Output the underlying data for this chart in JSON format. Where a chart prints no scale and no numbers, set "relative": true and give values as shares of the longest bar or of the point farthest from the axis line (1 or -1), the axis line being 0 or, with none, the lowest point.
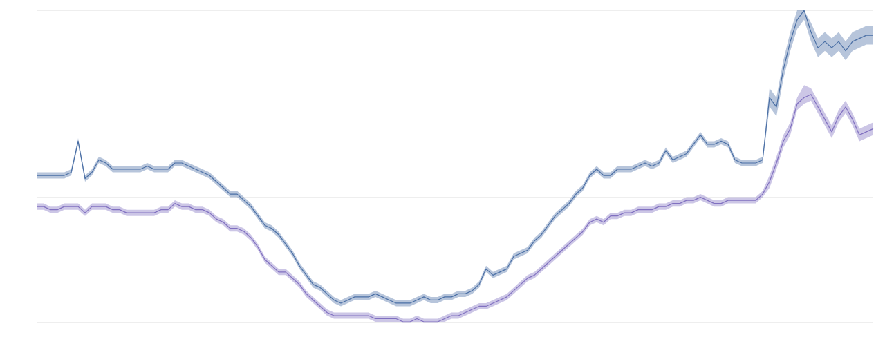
{
  "chart_data": {
    "type": "line",
    "relative": true,
    "grid": "y",
    "tick_labels": false,
    "categories": [
      null,
      null,
      null,
      null,
      null,
      null,
      null,
      null,
      null,
      null,
      null,
      null,
      null,
      null,
      null,
      null,
      null,
      null,
      null,
      null,
      null,
      null,
      null,
      null,
      null,
      null,
      null,
      null,
      null,
      null,
      null,
      null,
      null,
      null,
      null,
      null,
      null,
      null,
      null,
      null,
      null,
      null,
      null,
      null,
      null,
      null,
      null,
      null,
      null,
      null,
      null,
      null,
      null,
      null,
      null,
      null,
      null,
      null,
      null,
      null,
      null,
      null,
      null,
      null,
      null,
      null,
      null,
      null,
      null,
      null,
      null,
      null,
      null,
      null,
      null,
      null,
      null,
      null,
      null,
      null,
      null,
      null,
      null,
      null,
      null,
      null,
      null,
      null,
      null,
      null,
      null,
      null,
      null,
      null,
      null,
      null,
      null,
      null,
      null,
      null,
      null,
      null,
      null,
      null,
      null,
      null,
      null,
      null,
      null,
      null,
      null,
      null,
      null,
      null,
      null,
      null,
      null,
      null,
      null,
      null,
      null,
      null
    ],
    "series": [
      {
        "color": "#4a6fa5",
        "values": [
          0.47,
          0.47,
          0.47,
          0.47,
          0.47,
          0.48,
          0.58,
          0.46,
          0.48,
          0.52,
          0.51,
          0.49,
          0.49,
          0.49,
          0.49,
          0.49,
          0.5,
          0.49,
          0.49,
          0.49,
          0.51,
          0.51,
          0.5,
          0.49,
          0.48,
          0.47,
          0.45,
          0.43,
          0.41,
          0.41,
          0.39,
          0.37,
          0.34,
          0.31,
          0.3,
          0.28,
          0.25,
          0.22,
          0.18,
          0.15,
          0.12,
          0.11,
          0.09,
          0.07,
          0.06,
          0.07,
          0.08,
          0.08,
          0.08,
          0.09,
          0.08,
          0.07,
          0.06,
          0.06,
          0.06,
          0.07,
          0.08,
          0.07,
          0.07,
          0.08,
          0.08,
          0.09,
          0.09,
          0.1,
          0.12,
          0.17,
          0.15,
          0.16,
          0.17,
          0.21,
          0.22,
          0.23,
          0.26,
          0.28,
          0.31,
          0.34,
          0.36,
          0.38,
          0.41,
          0.43,
          0.47,
          0.49,
          0.47,
          0.47,
          0.49,
          0.49,
          0.49,
          0.5,
          0.51,
          0.5,
          0.51,
          0.55,
          0.52,
          0.53,
          0.54,
          0.57,
          0.6,
          0.57,
          0.57,
          0.58,
          0.57,
          0.52,
          0.51,
          0.51,
          0.51,
          0.52,
          0.72,
          0.69,
          0.81,
          0.9,
          0.97,
          1.0,
          0.93,
          0.88,
          0.9,
          0.88,
          0.9,
          0.87,
          0.9,
          0.91,
          0.92,
          0.92
        ],
        "lower": [
          0.46,
          0.46,
          0.46,
          0.46,
          0.46,
          0.47,
          0.57,
          0.45,
          0.47,
          0.51,
          0.5,
          0.48,
          0.48,
          0.48,
          0.48,
          0.48,
          0.49,
          0.48,
          0.48,
          0.48,
          0.5,
          0.5,
          0.49,
          0.48,
          0.47,
          0.46,
          0.44,
          0.42,
          0.4,
          0.4,
          0.38,
          0.36,
          0.33,
          0.3,
          0.29,
          0.27,
          0.24,
          0.21,
          0.17,
          0.14,
          0.11,
          0.1,
          0.08,
          0.06,
          0.05,
          0.06,
          0.07,
          0.07,
          0.07,
          0.08,
          0.07,
          0.06,
          0.05,
          0.05,
          0.05,
          0.06,
          0.07,
          0.06,
          0.06,
          0.07,
          0.07,
          0.08,
          0.08,
          0.09,
          0.11,
          0.16,
          0.14,
          0.15,
          0.16,
          0.2,
          0.21,
          0.22,
          0.25,
          0.27,
          0.3,
          0.33,
          0.35,
          0.37,
          0.4,
          0.42,
          0.46,
          0.48,
          0.46,
          0.46,
          0.48,
          0.48,
          0.48,
          0.49,
          0.5,
          0.49,
          0.5,
          0.54,
          0.51,
          0.52,
          0.53,
          0.56,
          0.59,
          0.56,
          0.56,
          0.57,
          0.56,
          0.51,
          0.5,
          0.5,
          0.5,
          0.51,
          0.69,
          0.66,
          0.78,
          0.87,
          0.94,
          0.97,
          0.9,
          0.85,
          0.87,
          0.85,
          0.87,
          0.84,
          0.87,
          0.88,
          0.89,
          0.89
        ],
        "upper": [
          0.48,
          0.48,
          0.48,
          0.48,
          0.48,
          0.49,
          0.59,
          0.47,
          0.49,
          0.53,
          0.52,
          0.5,
          0.5,
          0.5,
          0.5,
          0.5,
          0.51,
          0.5,
          0.5,
          0.5,
          0.52,
          0.52,
          0.51,
          0.5,
          0.49,
          0.48,
          0.46,
          0.44,
          0.42,
          0.42,
          0.4,
          0.38,
          0.35,
          0.32,
          0.31,
          0.29,
          0.26,
          0.23,
          0.19,
          0.16,
          0.13,
          0.12,
          0.1,
          0.08,
          0.07,
          0.08,
          0.09,
          0.09,
          0.09,
          0.1,
          0.09,
          0.08,
          0.07,
          0.07,
          0.07,
          0.08,
          0.09,
          0.08,
          0.08,
          0.09,
          0.09,
          0.1,
          0.1,
          0.11,
          0.13,
          0.18,
          0.16,
          0.17,
          0.18,
          0.22,
          0.23,
          0.24,
          0.27,
          0.29,
          0.32,
          0.35,
          0.37,
          0.39,
          0.42,
          0.44,
          0.48,
          0.5,
          0.48,
          0.48,
          0.5,
          0.5,
          0.5,
          0.51,
          0.52,
          0.51,
          0.52,
          0.56,
          0.53,
          0.54,
          0.55,
          0.58,
          0.61,
          0.58,
          0.58,
          0.59,
          0.58,
          0.53,
          0.52,
          0.52,
          0.52,
          0.53,
          0.75,
          0.72,
          0.84,
          0.93,
          1.0,
          1.0,
          0.96,
          0.91,
          0.93,
          0.91,
          0.93,
          0.9,
          0.93,
          0.94,
          0.95,
          0.95
        ]
      },
      {
        "color": "#8070c0",
        "values": [
          0.37,
          0.37,
          0.36,
          0.36,
          0.37,
          0.37,
          0.37,
          0.35,
          0.37,
          0.37,
          0.37,
          0.36,
          0.36,
          0.35,
          0.35,
          0.35,
          0.35,
          0.35,
          0.36,
          0.36,
          0.38,
          0.37,
          0.37,
          0.36,
          0.36,
          0.35,
          0.33,
          0.32,
          0.3,
          0.3,
          0.29,
          0.27,
          0.24,
          0.2,
          0.18,
          0.16,
          0.16,
          0.14,
          0.12,
          0.09,
          0.07,
          0.05,
          0.03,
          0.02,
          0.02,
          0.02,
          0.02,
          0.02,
          0.02,
          0.01,
          0.01,
          0.01,
          0.01,
          0.0,
          0.0,
          0.01,
          0.0,
          0.0,
          0.0,
          0.01,
          0.02,
          0.02,
          0.03,
          0.04,
          0.05,
          0.05,
          0.06,
          0.07,
          0.08,
          0.1,
          0.12,
          0.14,
          0.15,
          0.17,
          0.19,
          0.21,
          0.23,
          0.25,
          0.27,
          0.29,
          0.32,
          0.33,
          0.32,
          0.34,
          0.34,
          0.35,
          0.35,
          0.36,
          0.36,
          0.36,
          0.37,
          0.37,
          0.38,
          0.38,
          0.39,
          0.39,
          0.4,
          0.39,
          0.38,
          0.38,
          0.39,
          0.39,
          0.39,
          0.39,
          0.39,
          0.41,
          0.45,
          0.51,
          0.58,
          0.62,
          0.7,
          0.72,
          0.73,
          0.69,
          0.65,
          0.61,
          0.66,
          0.69,
          0.65,
          0.6,
          0.61,
          0.62
        ],
        "lower": [
          0.36,
          0.36,
          0.35,
          0.35,
          0.36,
          0.36,
          0.36,
          0.34,
          0.36,
          0.36,
          0.36,
          0.35,
          0.35,
          0.34,
          0.34,
          0.34,
          0.34,
          0.34,
          0.35,
          0.35,
          0.37,
          0.36,
          0.36,
          0.35,
          0.35,
          0.34,
          0.32,
          0.31,
          0.29,
          0.29,
          0.28,
          0.26,
          0.23,
          0.19,
          0.17,
          0.15,
          0.15,
          0.13,
          0.11,
          0.08,
          0.06,
          0.04,
          0.02,
          0.01,
          0.01,
          0.01,
          0.01,
          0.01,
          0.01,
          0.0,
          0.0,
          0.0,
          0.0,
          0.0,
          0.0,
          0.0,
          0.0,
          0.0,
          0.0,
          0.0,
          0.01,
          0.01,
          0.02,
          0.03,
          0.04,
          0.04,
          0.05,
          0.06,
          0.07,
          0.09,
          0.11,
          0.13,
          0.14,
          0.16,
          0.18,
          0.2,
          0.22,
          0.24,
          0.26,
          0.28,
          0.31,
          0.32,
          0.31,
          0.33,
          0.33,
          0.34,
          0.34,
          0.35,
          0.35,
          0.35,
          0.36,
          0.36,
          0.37,
          0.37,
          0.38,
          0.38,
          0.39,
          0.38,
          0.37,
          0.37,
          0.38,
          0.38,
          0.38,
          0.38,
          0.38,
          0.4,
          0.43,
          0.49,
          0.56,
          0.6,
          0.68,
          0.7,
          0.71,
          0.67,
          0.63,
          0.59,
          0.64,
          0.67,
          0.63,
          0.58,
          0.59,
          0.6
        ],
        "upper": [
          0.38,
          0.38,
          0.37,
          0.37,
          0.38,
          0.38,
          0.38,
          0.36,
          0.38,
          0.38,
          0.38,
          0.37,
          0.37,
          0.36,
          0.36,
          0.36,
          0.36,
          0.36,
          0.37,
          0.37,
          0.39,
          0.38,
          0.38,
          0.37,
          0.37,
          0.36,
          0.34,
          0.33,
          0.31,
          0.31,
          0.3,
          0.28,
          0.25,
          0.21,
          0.19,
          0.17,
          0.17,
          0.15,
          0.13,
          0.1,
          0.08,
          0.06,
          0.04,
          0.03,
          0.03,
          0.03,
          0.03,
          0.03,
          0.03,
          0.02,
          0.02,
          0.02,
          0.02,
          0.01,
          0.01,
          0.02,
          0.01,
          0.01,
          0.01,
          0.02,
          0.03,
          0.03,
          0.04,
          0.05,
          0.06,
          0.06,
          0.07,
          0.08,
          0.09,
          0.11,
          0.13,
          0.15,
          0.16,
          0.18,
          0.2,
          0.22,
          0.24,
          0.26,
          0.28,
          0.3,
          0.33,
          0.34,
          0.33,
          0.35,
          0.35,
          0.36,
          0.36,
          0.37,
          0.37,
          0.37,
          0.38,
          0.38,
          0.39,
          0.39,
          0.4,
          0.4,
          0.41,
          0.4,
          0.39,
          0.39,
          0.4,
          0.4,
          0.4,
          0.4,
          0.4,
          0.42,
          0.47,
          0.53,
          0.6,
          0.64,
          0.72,
          0.76,
          0.75,
          0.71,
          0.67,
          0.63,
          0.68,
          0.71,
          0.67,
          0.62,
          0.63,
          0.64
        ]
      }
    ]
  }
}
